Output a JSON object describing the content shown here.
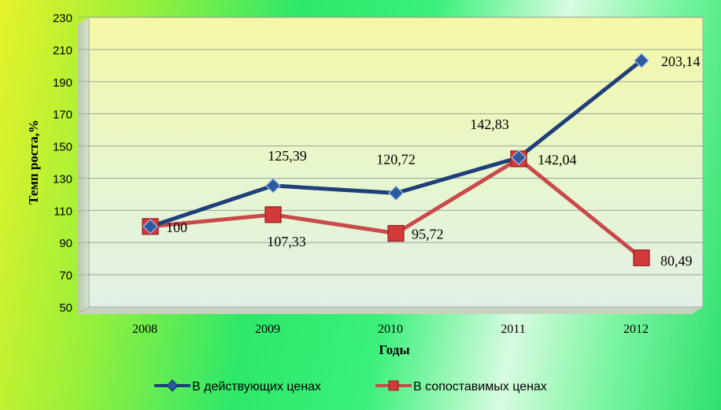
{
  "chart_data": {
    "type": "line",
    "categories": [
      "2008",
      "2009",
      "2010",
      "2011",
      "2012"
    ],
    "series": [
      {
        "name": "В действующих ценах",
        "values": [
          100,
          125.39,
          120.72,
          142.83,
          203.14
        ],
        "labels": [
          "",
          "125,39",
          "120,72",
          "142,83",
          "203,14"
        ],
        "color": "#1f3f7a",
        "marker": "diamond"
      },
      {
        "name": "В сопоставимых ценах",
        "values": [
          100,
          107.33,
          95.72,
          142.04,
          80.49
        ],
        "labels": [
          "100",
          "107,33",
          "95,72",
          "142,04",
          "80,49"
        ],
        "color": "#c94a4a",
        "marker": "square"
      }
    ],
    "xlabel": "Годы",
    "ylabel": "Темп роста,%",
    "ylim": [
      50,
      230
    ],
    "yticks": [
      50,
      70,
      90,
      110,
      130,
      150,
      170,
      190,
      210,
      230
    ],
    "grid": true,
    "legend": "bottom"
  }
}
